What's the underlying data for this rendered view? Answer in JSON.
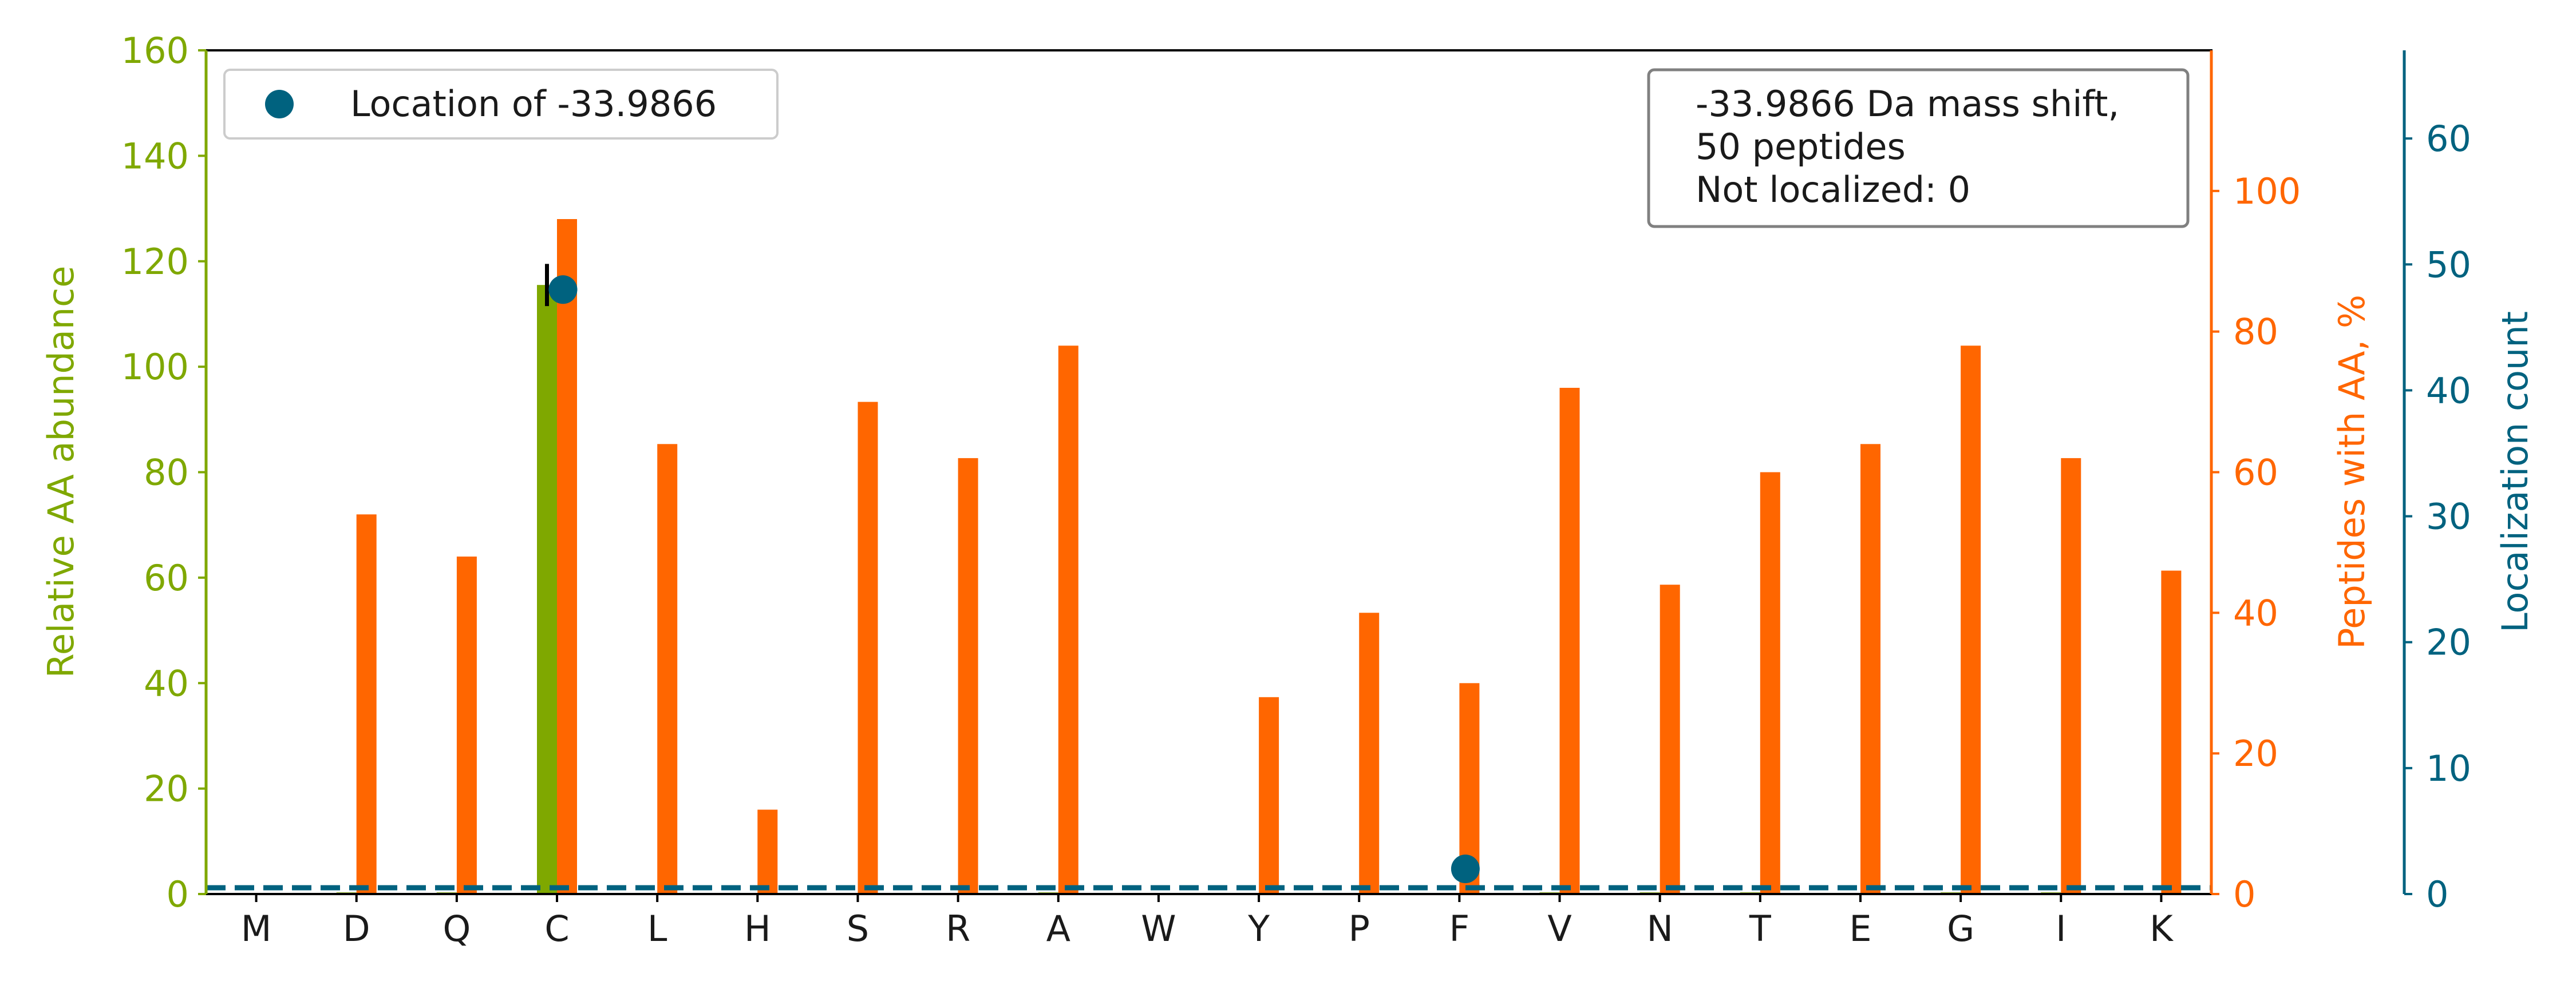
{
  "chart_data": {
    "type": "bar",
    "categories": [
      "M",
      "D",
      "Q",
      "C",
      "L",
      "H",
      "S",
      "R",
      "A",
      "W",
      "Y",
      "P",
      "F",
      "V",
      "N",
      "T",
      "E",
      "G",
      "I",
      "K"
    ],
    "left_axis": {
      "label": "Relative AA abundance",
      "ylim": [
        0,
        160
      ],
      "ticks": [
        0,
        20,
        40,
        60,
        80,
        100,
        120,
        140,
        160
      ],
      "color": "#7fa800"
    },
    "right_axis": {
      "label": "Peptides with AA, %",
      "ylim": [
        0,
        120
      ],
      "ticks": [
        0,
        20,
        40,
        60,
        80,
        100
      ],
      "color": "#ff6600"
    },
    "third_axis": {
      "label": "Localization count",
      "ylim": [
        0,
        67
      ],
      "ticks": [
        0,
        10,
        20,
        30,
        40,
        50,
        60
      ],
      "color": "#00627f"
    },
    "series": [
      {
        "axis": "left",
        "kind": "bar",
        "color": "#7fa800",
        "values": [
          0,
          0.3,
          0.3,
          115.5,
          0,
          0,
          0.2,
          0.2,
          0.3,
          0,
          0,
          0,
          0,
          0.3,
          0.3,
          0.3,
          0,
          0.3,
          0.3,
          0
        ],
        "error": [
          0,
          0,
          0,
          4,
          0,
          0,
          0,
          0,
          0,
          0,
          0,
          0,
          0,
          0,
          0,
          0,
          0,
          0,
          0,
          0
        ]
      },
      {
        "axis": "right",
        "kind": "bar",
        "color": "#ff6600",
        "values": [
          0,
          54,
          48,
          96,
          64,
          12,
          70,
          62,
          78,
          0,
          28,
          40,
          30,
          72,
          44,
          60,
          64,
          78,
          62,
          46
        ]
      },
      {
        "name": "Location of -33.9866",
        "axis": "third",
        "kind": "scatter",
        "color": "#00627f",
        "points": [
          {
            "category": "C",
            "value": 48
          },
          {
            "category": "F",
            "value": 2
          }
        ]
      },
      {
        "axis": "third",
        "kind": "dashed-line",
        "color": "#00627f",
        "value": 0.5
      }
    ],
    "legend": {
      "position": "top-left",
      "entries": [
        "Location of -33.9866"
      ]
    },
    "annotation": {
      "position": "top-right",
      "lines": [
        "-33.9866 Da mass shift,",
        "50 peptides",
        "Not localized: 0"
      ]
    },
    "grid": false
  }
}
